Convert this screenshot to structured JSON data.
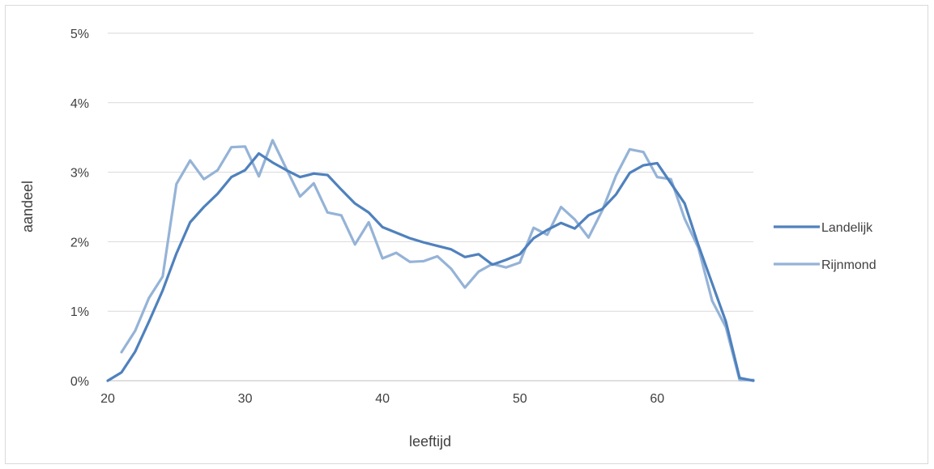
{
  "chart_data": {
    "type": "line",
    "xlabel": "leeftijd",
    "ylabel": "aandeel",
    "xlim": [
      20,
      67
    ],
    "ylim": [
      0,
      5
    ],
    "x_ticks": [
      20,
      30,
      40,
      50,
      60
    ],
    "y_ticks": [
      0,
      1,
      2,
      3,
      4,
      5
    ],
    "y_tick_labels": [
      "0%",
      "1%",
      "2%",
      "3%",
      "4%",
      "5%"
    ],
    "grid": "horizontal",
    "legend_position": "right",
    "series": [
      {
        "name": "Landelijk",
        "color": "#4f81bd",
        "x": [
          20,
          21,
          22,
          23,
          24,
          25,
          26,
          27,
          28,
          29,
          30,
          31,
          32,
          33,
          34,
          35,
          36,
          37,
          38,
          39,
          40,
          41,
          42,
          43,
          44,
          45,
          46,
          47,
          48,
          49,
          50,
          51,
          52,
          53,
          54,
          55,
          56,
          57,
          58,
          59,
          60,
          61,
          62,
          63,
          64,
          65,
          66,
          67
        ],
        "values": [
          0.0,
          0.12,
          0.42,
          0.85,
          1.3,
          1.83,
          2.28,
          2.5,
          2.69,
          2.93,
          3.03,
          3.27,
          3.14,
          3.03,
          2.93,
          2.98,
          2.96,
          2.75,
          2.55,
          2.42,
          2.21,
          2.13,
          2.05,
          1.99,
          1.94,
          1.89,
          1.78,
          1.82,
          1.67,
          1.74,
          1.82,
          2.05,
          2.17,
          2.27,
          2.19,
          2.38,
          2.47,
          2.68,
          2.99,
          3.1,
          3.13,
          2.84,
          2.55,
          1.95,
          1.4,
          0.85,
          0.04,
          0.0
        ]
      },
      {
        "name": "Rijnmond",
        "color": "#95b3d7",
        "x": [
          21,
          22,
          23,
          24,
          25,
          26,
          27,
          28,
          29,
          30,
          31,
          32,
          33,
          34,
          35,
          36,
          37,
          38,
          39,
          40,
          41,
          42,
          43,
          44,
          45,
          46,
          47,
          48,
          49,
          50,
          51,
          52,
          53,
          54,
          55,
          56,
          57,
          58,
          59,
          60,
          61,
          62,
          63,
          64,
          65,
          66,
          67
        ],
        "values": [
          0.41,
          0.72,
          1.19,
          1.5,
          2.83,
          3.17,
          2.9,
          3.03,
          3.36,
          3.37,
          2.94,
          3.46,
          3.05,
          2.65,
          2.84,
          2.42,
          2.38,
          1.96,
          2.28,
          1.76,
          1.84,
          1.71,
          1.72,
          1.79,
          1.61,
          1.34,
          1.57,
          1.68,
          1.63,
          1.7,
          2.2,
          2.1,
          2.5,
          2.32,
          2.06,
          2.45,
          2.95,
          3.33,
          3.29,
          2.93,
          2.9,
          2.33,
          1.91,
          1.15,
          0.77,
          0.01,
          0.01
        ]
      }
    ]
  }
}
